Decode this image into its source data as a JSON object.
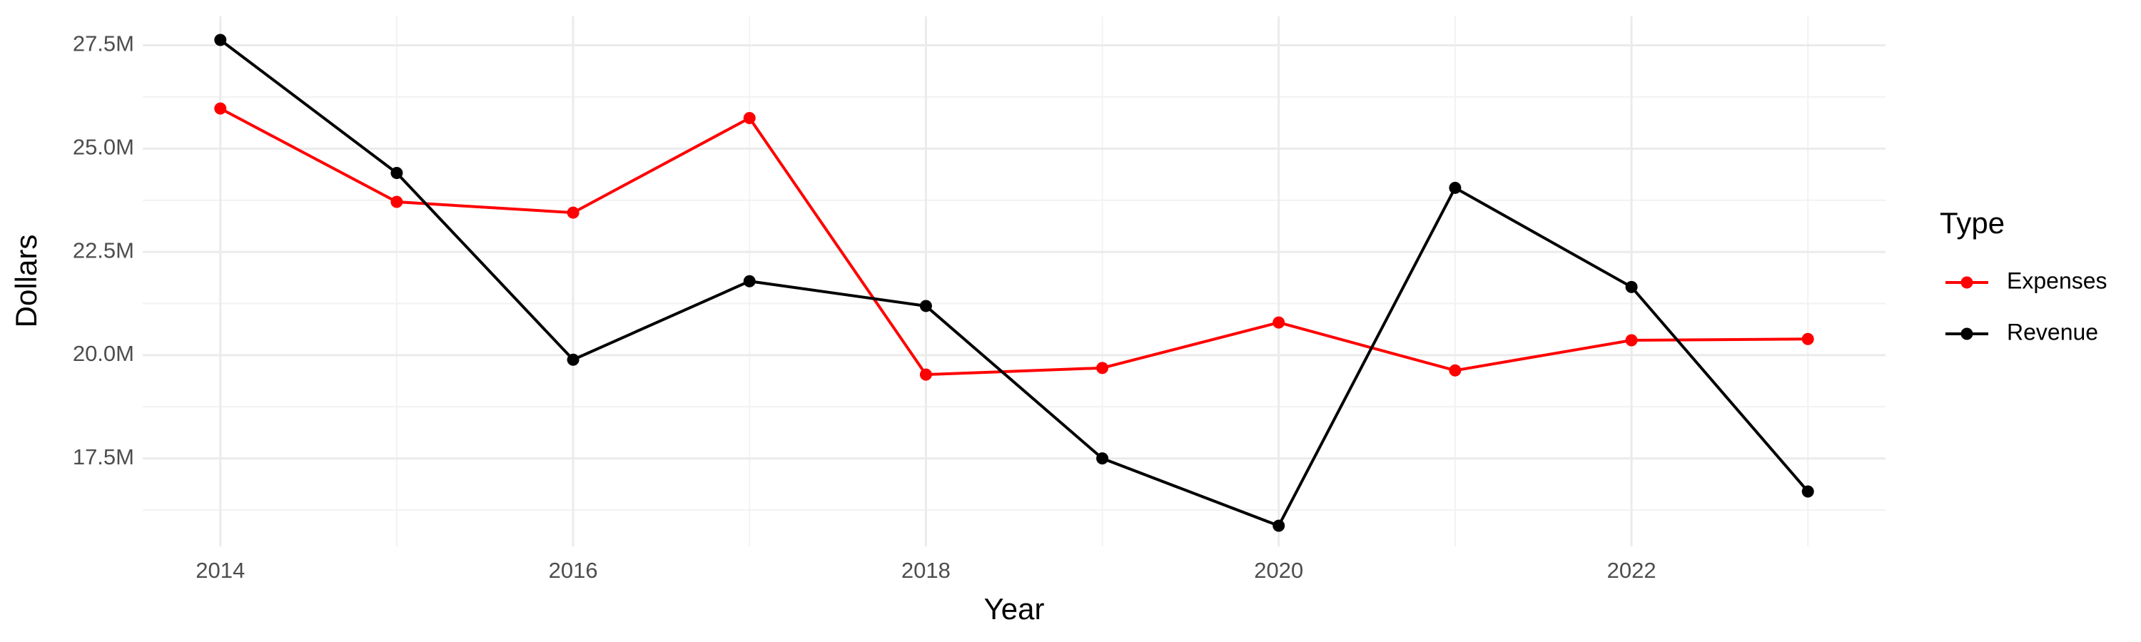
{
  "chart_data": {
    "type": "line",
    "x_label": "Year",
    "y_label": "Dollars",
    "x": [
      2014,
      2015,
      2016,
      2017,
      2018,
      2019,
      2020,
      2021,
      2022,
      2023
    ],
    "series": [
      {
        "name": "Expenses",
        "color": "#ff0000",
        "values": [
          25970000,
          23710000,
          23450000,
          25740000,
          19530000,
          19690000,
          20790000,
          19630000,
          20360000,
          20390000
        ]
      },
      {
        "name": "Revenue",
        "color": "#000000",
        "values": [
          27630000,
          24410000,
          19890000,
          21790000,
          21190000,
          17500000,
          15870000,
          24050000,
          21650000,
          16700000
        ]
      }
    ],
    "legend_title": "Type",
    "xlim": [
      2013.56,
      2023.44
    ],
    "xticks": [
      2014,
      2016,
      2018,
      2020,
      2022
    ],
    "ylim": [
      15370000,
      28200000
    ],
    "yticks": [
      {
        "value": 17500000,
        "label": "17.5M"
      },
      {
        "value": 20000000,
        "label": "20.0M"
      },
      {
        "value": 22500000,
        "label": "22.5M"
      },
      {
        "value": 25000000,
        "label": "25.0M"
      },
      {
        "value": 27500000,
        "label": "27.5M"
      }
    ],
    "grid": true,
    "legend_position": "right"
  }
}
